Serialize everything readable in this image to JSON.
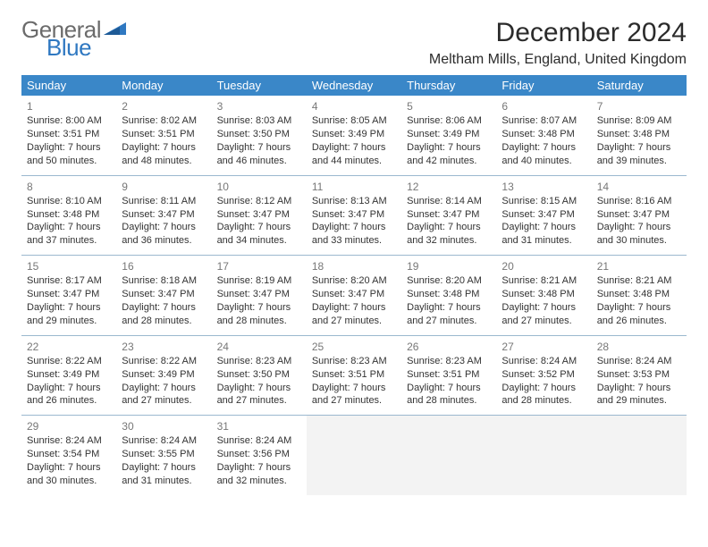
{
  "logo": {
    "text1": "General",
    "text2": "Blue"
  },
  "title": "December 2024",
  "location": "Meltham Mills, England, United Kingdom",
  "colors": {
    "header_bg": "#3a87c8",
    "header_text": "#ffffff",
    "row_border": "#9bb8cf",
    "daynum": "#777777",
    "body_text": "#333333",
    "logo_grey": "#6b6b6b",
    "logo_blue": "#2f78c1",
    "empty_bg": "#f3f3f3"
  },
  "weekdays": [
    "Sunday",
    "Monday",
    "Tuesday",
    "Wednesday",
    "Thursday",
    "Friday",
    "Saturday"
  ],
  "days": [
    {
      "n": "1",
      "sr": "Sunrise: 8:00 AM",
      "ss": "Sunset: 3:51 PM",
      "d1": "Daylight: 7 hours",
      "d2": "and 50 minutes."
    },
    {
      "n": "2",
      "sr": "Sunrise: 8:02 AM",
      "ss": "Sunset: 3:51 PM",
      "d1": "Daylight: 7 hours",
      "d2": "and 48 minutes."
    },
    {
      "n": "3",
      "sr": "Sunrise: 8:03 AM",
      "ss": "Sunset: 3:50 PM",
      "d1": "Daylight: 7 hours",
      "d2": "and 46 minutes."
    },
    {
      "n": "4",
      "sr": "Sunrise: 8:05 AM",
      "ss": "Sunset: 3:49 PM",
      "d1": "Daylight: 7 hours",
      "d2": "and 44 minutes."
    },
    {
      "n": "5",
      "sr": "Sunrise: 8:06 AM",
      "ss": "Sunset: 3:49 PM",
      "d1": "Daylight: 7 hours",
      "d2": "and 42 minutes."
    },
    {
      "n": "6",
      "sr": "Sunrise: 8:07 AM",
      "ss": "Sunset: 3:48 PM",
      "d1": "Daylight: 7 hours",
      "d2": "and 40 minutes."
    },
    {
      "n": "7",
      "sr": "Sunrise: 8:09 AM",
      "ss": "Sunset: 3:48 PM",
      "d1": "Daylight: 7 hours",
      "d2": "and 39 minutes."
    },
    {
      "n": "8",
      "sr": "Sunrise: 8:10 AM",
      "ss": "Sunset: 3:48 PM",
      "d1": "Daylight: 7 hours",
      "d2": "and 37 minutes."
    },
    {
      "n": "9",
      "sr": "Sunrise: 8:11 AM",
      "ss": "Sunset: 3:47 PM",
      "d1": "Daylight: 7 hours",
      "d2": "and 36 minutes."
    },
    {
      "n": "10",
      "sr": "Sunrise: 8:12 AM",
      "ss": "Sunset: 3:47 PM",
      "d1": "Daylight: 7 hours",
      "d2": "and 34 minutes."
    },
    {
      "n": "11",
      "sr": "Sunrise: 8:13 AM",
      "ss": "Sunset: 3:47 PM",
      "d1": "Daylight: 7 hours",
      "d2": "and 33 minutes."
    },
    {
      "n": "12",
      "sr": "Sunrise: 8:14 AM",
      "ss": "Sunset: 3:47 PM",
      "d1": "Daylight: 7 hours",
      "d2": "and 32 minutes."
    },
    {
      "n": "13",
      "sr": "Sunrise: 8:15 AM",
      "ss": "Sunset: 3:47 PM",
      "d1": "Daylight: 7 hours",
      "d2": "and 31 minutes."
    },
    {
      "n": "14",
      "sr": "Sunrise: 8:16 AM",
      "ss": "Sunset: 3:47 PM",
      "d1": "Daylight: 7 hours",
      "d2": "and 30 minutes."
    },
    {
      "n": "15",
      "sr": "Sunrise: 8:17 AM",
      "ss": "Sunset: 3:47 PM",
      "d1": "Daylight: 7 hours",
      "d2": "and 29 minutes."
    },
    {
      "n": "16",
      "sr": "Sunrise: 8:18 AM",
      "ss": "Sunset: 3:47 PM",
      "d1": "Daylight: 7 hours",
      "d2": "and 28 minutes."
    },
    {
      "n": "17",
      "sr": "Sunrise: 8:19 AM",
      "ss": "Sunset: 3:47 PM",
      "d1": "Daylight: 7 hours",
      "d2": "and 28 minutes."
    },
    {
      "n": "18",
      "sr": "Sunrise: 8:20 AM",
      "ss": "Sunset: 3:47 PM",
      "d1": "Daylight: 7 hours",
      "d2": "and 27 minutes."
    },
    {
      "n": "19",
      "sr": "Sunrise: 8:20 AM",
      "ss": "Sunset: 3:48 PM",
      "d1": "Daylight: 7 hours",
      "d2": "and 27 minutes."
    },
    {
      "n": "20",
      "sr": "Sunrise: 8:21 AM",
      "ss": "Sunset: 3:48 PM",
      "d1": "Daylight: 7 hours",
      "d2": "and 27 minutes."
    },
    {
      "n": "21",
      "sr": "Sunrise: 8:21 AM",
      "ss": "Sunset: 3:48 PM",
      "d1": "Daylight: 7 hours",
      "d2": "and 26 minutes."
    },
    {
      "n": "22",
      "sr": "Sunrise: 8:22 AM",
      "ss": "Sunset: 3:49 PM",
      "d1": "Daylight: 7 hours",
      "d2": "and 26 minutes."
    },
    {
      "n": "23",
      "sr": "Sunrise: 8:22 AM",
      "ss": "Sunset: 3:49 PM",
      "d1": "Daylight: 7 hours",
      "d2": "and 27 minutes."
    },
    {
      "n": "24",
      "sr": "Sunrise: 8:23 AM",
      "ss": "Sunset: 3:50 PM",
      "d1": "Daylight: 7 hours",
      "d2": "and 27 minutes."
    },
    {
      "n": "25",
      "sr": "Sunrise: 8:23 AM",
      "ss": "Sunset: 3:51 PM",
      "d1": "Daylight: 7 hours",
      "d2": "and 27 minutes."
    },
    {
      "n": "26",
      "sr": "Sunrise: 8:23 AM",
      "ss": "Sunset: 3:51 PM",
      "d1": "Daylight: 7 hours",
      "d2": "and 28 minutes."
    },
    {
      "n": "27",
      "sr": "Sunrise: 8:24 AM",
      "ss": "Sunset: 3:52 PM",
      "d1": "Daylight: 7 hours",
      "d2": "and 28 minutes."
    },
    {
      "n": "28",
      "sr": "Sunrise: 8:24 AM",
      "ss": "Sunset: 3:53 PM",
      "d1": "Daylight: 7 hours",
      "d2": "and 29 minutes."
    },
    {
      "n": "29",
      "sr": "Sunrise: 8:24 AM",
      "ss": "Sunset: 3:54 PM",
      "d1": "Daylight: 7 hours",
      "d2": "and 30 minutes."
    },
    {
      "n": "30",
      "sr": "Sunrise: 8:24 AM",
      "ss": "Sunset: 3:55 PM",
      "d1": "Daylight: 7 hours",
      "d2": "and 31 minutes."
    },
    {
      "n": "31",
      "sr": "Sunrise: 8:24 AM",
      "ss": "Sunset: 3:56 PM",
      "d1": "Daylight: 7 hours",
      "d2": "and 32 minutes."
    }
  ]
}
